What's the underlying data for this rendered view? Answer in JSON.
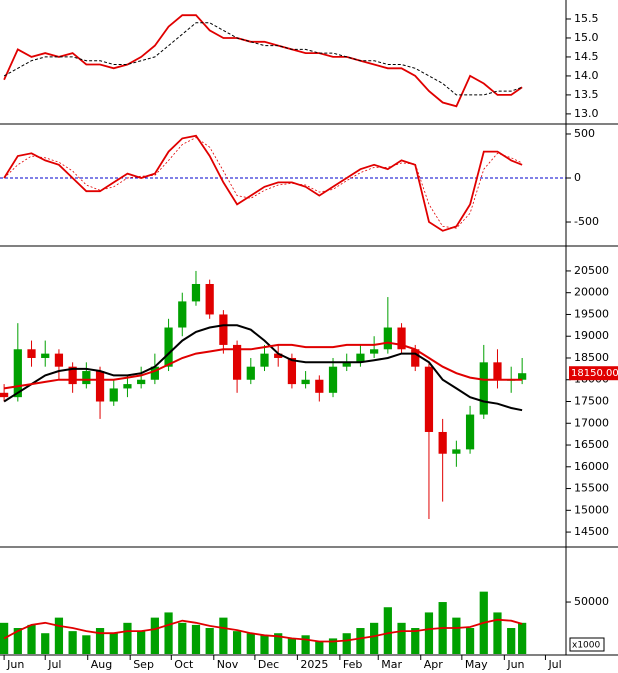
{
  "chart_data": [
    {
      "type": "line",
      "x": [
        0,
        10,
        20,
        30,
        40,
        50,
        60,
        70,
        80,
        90,
        100,
        110,
        120,
        130,
        140,
        150,
        160,
        170,
        180,
        190,
        200,
        210,
        220,
        230,
        240,
        250,
        260,
        270,
        280,
        290,
        300,
        310,
        320,
        330,
        340,
        350,
        360,
        370,
        378
      ],
      "xlim": [
        -3,
        410
      ],
      "ylim": [
        12.76,
        16.0
      ],
      "yticks": [
        {
          "value": 13,
          "label": "13.0"
        },
        {
          "value": 13.5,
          "label": "13.5"
        },
        {
          "value": 14,
          "label": "14.0"
        },
        {
          "value": 14.5,
          "label": "14.5"
        },
        {
          "value": 15,
          "label": "15.0"
        },
        {
          "value": 15.5,
          "label": "15.5"
        }
      ],
      "series": [
        {
          "color": "#e00000",
          "style": "solid",
          "values": [
            13.9,
            14.7,
            14.5,
            14.6,
            14.5,
            14.6,
            14.3,
            14.3,
            14.2,
            14.3,
            14.5,
            14.8,
            15.3,
            15.6,
            15.6,
            15.2,
            15.0,
            15.0,
            14.9,
            14.9,
            14.8,
            14.7,
            14.6,
            14.6,
            14.5,
            14.5,
            14.4,
            14.3,
            14.2,
            14.2,
            14.0,
            13.6,
            13.3,
            13.2,
            14.0,
            13.8,
            13.5,
            13.5,
            13.7
          ]
        },
        {
          "color": "#000000",
          "style": "dashed",
          "values": [
            14.0,
            14.2,
            14.4,
            14.5,
            14.5,
            14.5,
            14.4,
            14.4,
            14.3,
            14.3,
            14.4,
            14.5,
            14.8,
            15.1,
            15.4,
            15.4,
            15.2,
            15.0,
            14.9,
            14.8,
            14.8,
            14.7,
            14.7,
            14.6,
            14.6,
            14.5,
            14.4,
            14.4,
            14.3,
            14.3,
            14.2,
            14.0,
            13.8,
            13.5,
            13.5,
            13.5,
            13.6,
            13.6,
            13.7
          ]
        }
      ]
    },
    {
      "type": "line",
      "x": [
        0,
        10,
        20,
        30,
        40,
        50,
        60,
        70,
        80,
        90,
        100,
        110,
        120,
        130,
        140,
        150,
        160,
        170,
        180,
        190,
        200,
        210,
        220,
        230,
        240,
        250,
        260,
        270,
        280,
        290,
        300,
        310,
        320,
        330,
        340,
        350,
        360,
        370,
        378
      ],
      "xlim": [
        -3,
        410
      ],
      "ylim": [
        -761,
        602
      ],
      "yticks": [
        -500,
        0,
        500
      ],
      "zero_line_color": "#0000cc",
      "series": [
        {
          "color": "#e00000",
          "style": "solid",
          "values": [
            0,
            250,
            280,
            200,
            150,
            0,
            -150,
            -150,
            -50,
            50,
            0,
            50,
            300,
            450,
            480,
            250,
            -50,
            -300,
            -200,
            -100,
            -50,
            -50,
            -100,
            -200,
            -100,
            0,
            100,
            150,
            100,
            200,
            150,
            -500,
            -600,
            -550,
            -300,
            300,
            300,
            200,
            150
          ]
        },
        {
          "color": "#e00000",
          "style": "thin-dashed",
          "values": [
            0,
            150,
            250,
            230,
            180,
            80,
            -80,
            -140,
            -100,
            0,
            20,
            30,
            200,
            380,
            460,
            350,
            80,
            -200,
            -230,
            -140,
            -80,
            -60,
            -80,
            -160,
            -130,
            -30,
            60,
            120,
            120,
            170,
            160,
            -300,
            -550,
            -570,
            -400,
            100,
            280,
            230,
            170
          ]
        }
      ]
    },
    {
      "type": "candlestick",
      "x": [
        0,
        10,
        20,
        30,
        40,
        50,
        60,
        70,
        80,
        90,
        100,
        110,
        120,
        130,
        140,
        150,
        160,
        170,
        180,
        190,
        200,
        210,
        220,
        230,
        240,
        250,
        260,
        270,
        280,
        290,
        300,
        310,
        320,
        330,
        340,
        350,
        360,
        370,
        378
      ],
      "xlim": [
        -3,
        410
      ],
      "ylim": [
        14180,
        21050
      ],
      "yticks": [
        14500,
        15000,
        15500,
        16000,
        16500,
        17000,
        17500,
        18000,
        18500,
        19000,
        19500,
        20000,
        20500
      ],
      "up_color": "#00a000",
      "down_color": "#e00000",
      "open": [
        17700,
        17600,
        18700,
        18500,
        18600,
        18300,
        17900,
        18200,
        17500,
        17800,
        17900,
        18000,
        18300,
        19200,
        19800,
        20200,
        19500,
        18800,
        18000,
        18300,
        18600,
        18500,
        17900,
        18000,
        17700,
        18300,
        18400,
        18600,
        18700,
        19200,
        18700,
        18300,
        16800,
        16300,
        16400,
        17200,
        18400,
        18000,
        18000
      ],
      "high": [
        17900,
        19300,
        18900,
        18900,
        18700,
        18400,
        18400,
        18300,
        18000,
        18100,
        18300,
        18600,
        19400,
        20000,
        20500,
        20300,
        19600,
        18900,
        18500,
        18800,
        18800,
        18600,
        18200,
        18100,
        18500,
        18600,
        18800,
        19000,
        19900,
        19300,
        18800,
        18400,
        17100,
        16600,
        17400,
        18800,
        18700,
        18300,
        18500
      ],
      "low": [
        17500,
        17500,
        18300,
        18300,
        18000,
        17700,
        17800,
        17100,
        17400,
        17600,
        17800,
        17900,
        18200,
        19000,
        19700,
        19400,
        18600,
        17700,
        17900,
        18200,
        18300,
        17800,
        17800,
        17500,
        17600,
        18200,
        18300,
        18500,
        18600,
        18600,
        18200,
        14800,
        15200,
        16000,
        16300,
        17100,
        17800,
        17700,
        17900
      ],
      "close": [
        17600,
        18700,
        18500,
        18600,
        18300,
        17900,
        18200,
        17500,
        17800,
        17900,
        18000,
        18300,
        19200,
        19800,
        20200,
        19500,
        18800,
        18000,
        18300,
        18600,
        18500,
        17900,
        18000,
        17700,
        18300,
        18400,
        18600,
        18700,
        19200,
        18700,
        18300,
        16800,
        16300,
        16400,
        17200,
        18400,
        18000,
        18000,
        18150
      ],
      "last_label": "18150.00",
      "series": [
        {
          "color": "#000000",
          "style": "bold",
          "values": [
            17500,
            17700,
            17900,
            18100,
            18200,
            18250,
            18250,
            18200,
            18100,
            18100,
            18150,
            18300,
            18600,
            18900,
            19100,
            19200,
            19250,
            19250,
            19150,
            18900,
            18600,
            18450,
            18400,
            18400,
            18400,
            18400,
            18400,
            18450,
            18500,
            18600,
            18600,
            18400,
            18000,
            17800,
            17600,
            17500,
            17450,
            17350,
            17300
          ]
        },
        {
          "color": "#e00000",
          "style": "bold",
          "values": [
            17800,
            17850,
            17900,
            17950,
            18000,
            18000,
            18000,
            18000,
            18000,
            18050,
            18100,
            18200,
            18350,
            18500,
            18600,
            18650,
            18700,
            18700,
            18700,
            18750,
            18800,
            18800,
            18750,
            18750,
            18750,
            18800,
            18800,
            18800,
            18850,
            18800,
            18700,
            18500,
            18300,
            18150,
            18050,
            18000,
            18000,
            18000,
            18000
          ]
        }
      ]
    },
    {
      "type": "bar",
      "x": [
        0,
        10,
        20,
        30,
        40,
        50,
        60,
        70,
        80,
        90,
        100,
        110,
        120,
        130,
        140,
        150,
        160,
        170,
        180,
        190,
        200,
        210,
        220,
        230,
        240,
        250,
        260,
        270,
        280,
        290,
        300,
        310,
        320,
        330,
        340,
        350,
        360,
        370,
        378
      ],
      "xlim": [
        -3,
        410
      ],
      "ylim": [
        0,
        102000
      ],
      "yticks": [
        50000
      ],
      "unit_label": "x1000",
      "color": "#00a000",
      "values": [
        30000,
        25000,
        28000,
        20000,
        35000,
        22000,
        18000,
        25000,
        20000,
        30000,
        22000,
        35000,
        40000,
        30000,
        28000,
        25000,
        35000,
        22000,
        20000,
        18000,
        20000,
        15000,
        18000,
        12000,
        15000,
        20000,
        25000,
        30000,
        45000,
        30000,
        25000,
        40000,
        50000,
        35000,
        25000,
        60000,
        40000,
        25000,
        30000
      ],
      "series": [
        {
          "color": "#e00000",
          "style": "solid",
          "values": [
            15000,
            22000,
            28000,
            30000,
            27000,
            25000,
            22000,
            20000,
            20000,
            22000,
            22000,
            24000,
            28000,
            32000,
            30000,
            27000,
            25000,
            23000,
            20000,
            18000,
            17000,
            15000,
            14000,
            12000,
            12000,
            13000,
            15000,
            17000,
            20000,
            22000,
            22000,
            24000,
            25000,
            25000,
            26000,
            30000,
            33000,
            32000,
            29000
          ]
        }
      ],
      "xticks": [
        {
          "value": 0,
          "label": "Jun"
        },
        {
          "value": 30,
          "label": "Jul"
        },
        {
          "value": 61,
          "label": "Aug"
        },
        {
          "value": 92,
          "label": "Sep"
        },
        {
          "value": 122,
          "label": "Oct"
        },
        {
          "value": 153,
          "label": "Nov"
        },
        {
          "value": 183,
          "label": "Dec"
        },
        {
          "value": 214,
          "label": "2025"
        },
        {
          "value": 245,
          "label": "Feb"
        },
        {
          "value": 273,
          "label": "Mar"
        },
        {
          "value": 304,
          "label": "Apr"
        },
        {
          "value": 334,
          "label": "May"
        },
        {
          "value": 365,
          "label": "Jun"
        },
        {
          "value": 395,
          "label": "Jul"
        }
      ]
    }
  ]
}
